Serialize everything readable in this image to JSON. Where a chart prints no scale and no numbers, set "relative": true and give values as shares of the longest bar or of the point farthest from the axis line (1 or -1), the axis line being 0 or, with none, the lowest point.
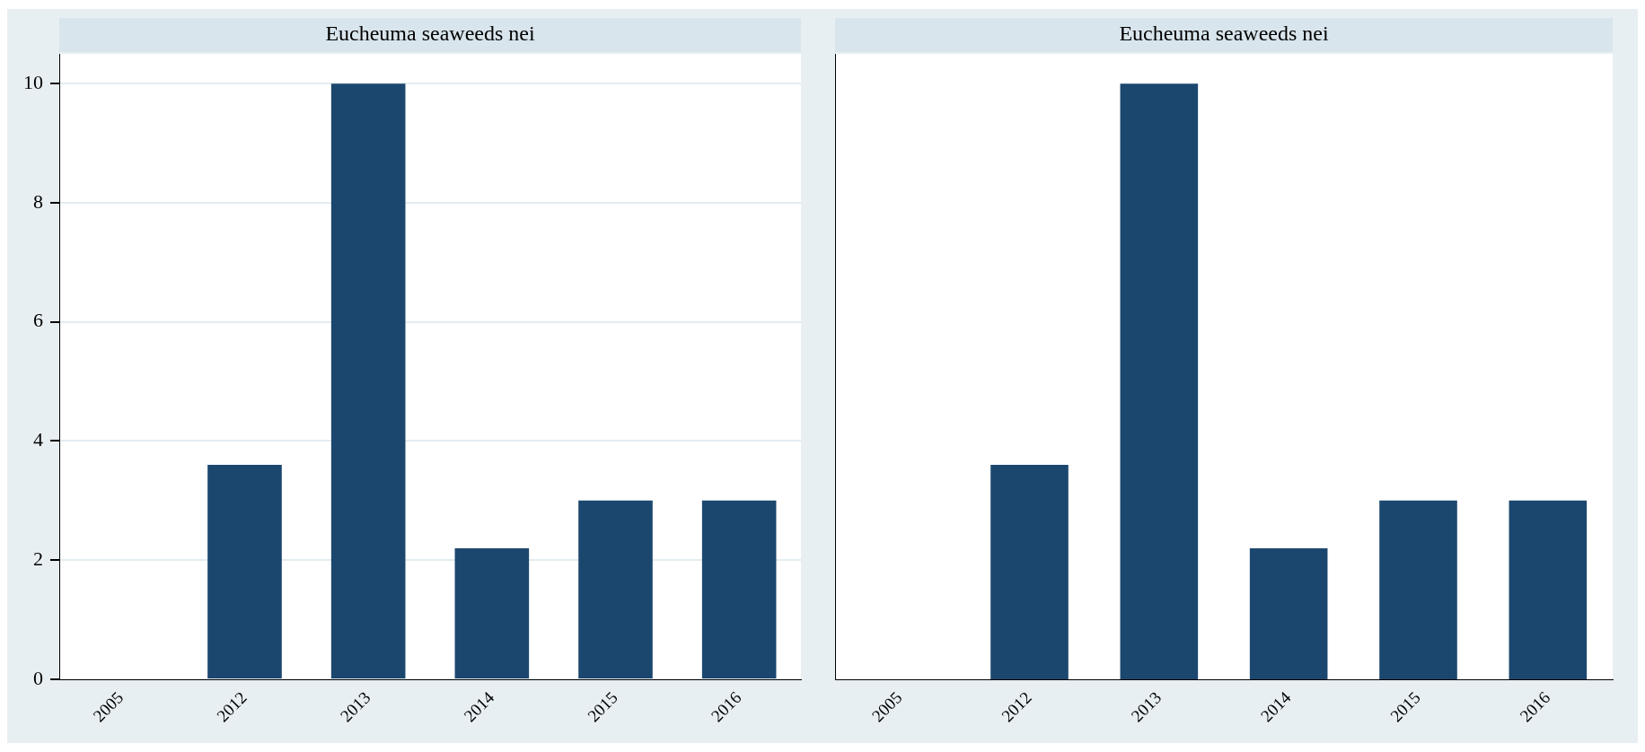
{
  "chart_data": [
    {
      "type": "bar",
      "title": "Eucheuma seaweeds nei",
      "categories": [
        "2005",
        "2012",
        "2013",
        "2014",
        "2015",
        "2016"
      ],
      "values": [
        0,
        3.6,
        10,
        2.2,
        3,
        3
      ],
      "color": "#1b476f",
      "ylim": [
        0,
        10.5
      ],
      "yticks": [
        0,
        2,
        4,
        6,
        8,
        10
      ],
      "grid": "y"
    },
    {
      "type": "bar",
      "title": "Eucheuma seaweeds nei",
      "categories": [
        "2005",
        "2012",
        "2013",
        "2014",
        "2015",
        "2016"
      ],
      "values": [
        0,
        0.36,
        1,
        0.22,
        0.3,
        0.3
      ],
      "color": "#1b476f",
      "relative": true
    }
  ]
}
